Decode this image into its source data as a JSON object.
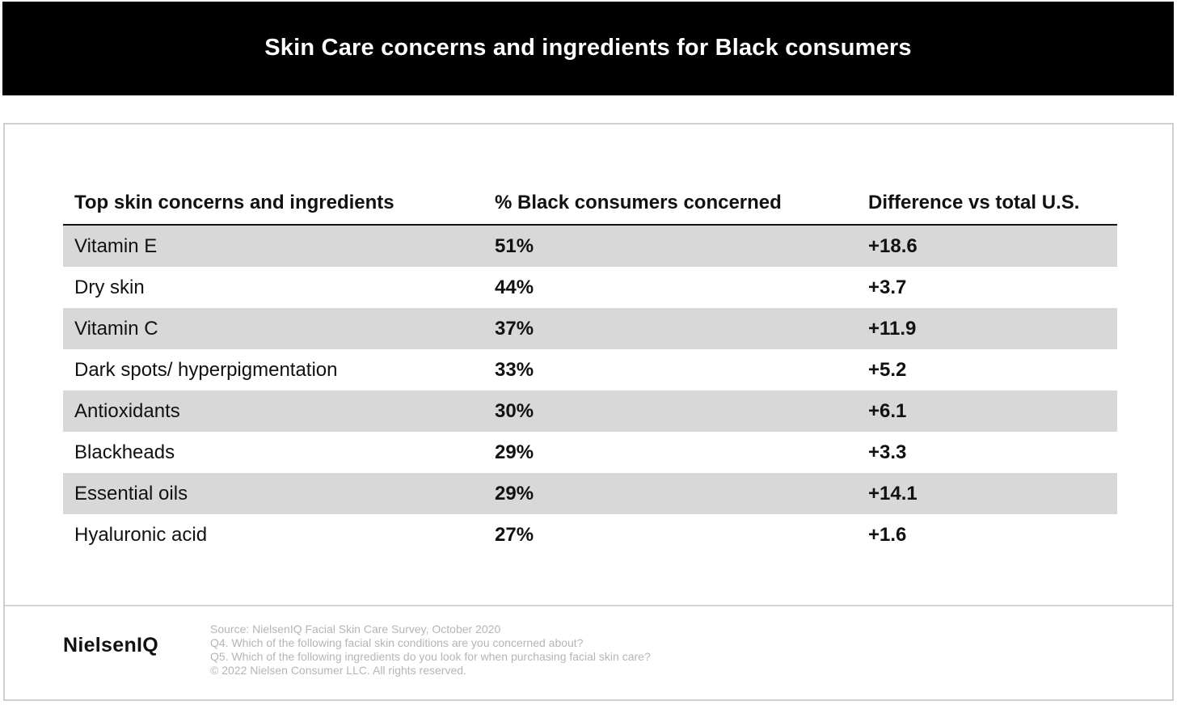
{
  "title": "Skin Care concerns and ingredients for Black consumers",
  "chart_data": {
    "type": "table",
    "columns": [
      "Top skin concerns and ingredients",
      "% Black consumers concerned",
      "Difference vs total U.S."
    ],
    "rows": [
      {
        "label": "Vitamin E",
        "pct": "51%",
        "diff": "+18.6"
      },
      {
        "label": "Dry skin",
        "pct": "44%",
        "diff": "+3.7"
      },
      {
        "label": "Vitamin C",
        "pct": "37%",
        "diff": "+11.9"
      },
      {
        "label": "Dark spots/ hyperpigmentation",
        "pct": "33%",
        "diff": "+5.2"
      },
      {
        "label": "Antioxidants",
        "pct": "30%",
        "diff": "+6.1"
      },
      {
        "label": "Blackheads",
        "pct": "29%",
        "diff": "+3.3"
      },
      {
        "label": "Essential oils",
        "pct": "29%",
        "diff": "+14.1"
      },
      {
        "label": "Hyaluronic acid",
        "pct": "27%",
        "diff": "+1.6"
      }
    ],
    "values_pct": [
      51,
      44,
      37,
      33,
      30,
      29,
      29,
      27
    ],
    "values_diff": [
      18.6,
      3.7,
      11.9,
      5.2,
      6.1,
      3.3,
      14.1,
      1.6
    ]
  },
  "footer": {
    "logo": "NielsenIQ",
    "notes": [
      "Source: NielsenIQ Facial Skin Care Survey, October 2020",
      "Q4. Which of the following facial skin conditions are you concerned about?",
      "Q5. Which of the following ingredients do you look for when purchasing facial skin care?",
      "© 2022 Nielsen Consumer LLC. All rights reserved."
    ]
  },
  "colors": {
    "title_bg": "#000000",
    "title_text": "#ffffff",
    "row_shade": "#d8d8d8",
    "notes_text": "#b5b5b5"
  }
}
